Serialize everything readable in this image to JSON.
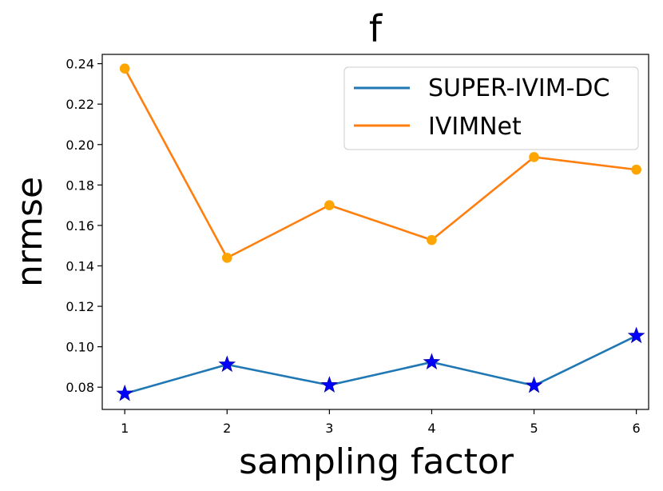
{
  "chart_data": {
    "type": "line",
    "title": "f",
    "xlabel": "sampling factor",
    "ylabel": "nrmse",
    "x": [
      1,
      2,
      3,
      4,
      5,
      6
    ],
    "xticks": [
      "1",
      "2",
      "3",
      "4",
      "5",
      "6"
    ],
    "yticks": [
      "0.08",
      "0.10",
      "0.12",
      "0.14",
      "0.16",
      "0.18",
      "0.20",
      "0.22",
      "0.24"
    ],
    "xlim": [
      0.78,
      6.12
    ],
    "ylim": [
      0.069,
      0.2446
    ],
    "legend_position": "upper right",
    "series": [
      {
        "name": "SUPER-IVIM-DC",
        "values": [
          0.0768,
          0.0912,
          0.081,
          0.0924,
          0.0808,
          0.1054
        ],
        "line_color": "#1f77b4",
        "marker": "star",
        "marker_color": "#0000ff"
      },
      {
        "name": "IVIMNet",
        "values": [
          0.2376,
          0.144,
          0.17,
          0.1528,
          0.1938,
          0.1876
        ],
        "line_color": "#ff7f0e",
        "marker": "circle",
        "marker_color": "#ffa500"
      }
    ]
  }
}
